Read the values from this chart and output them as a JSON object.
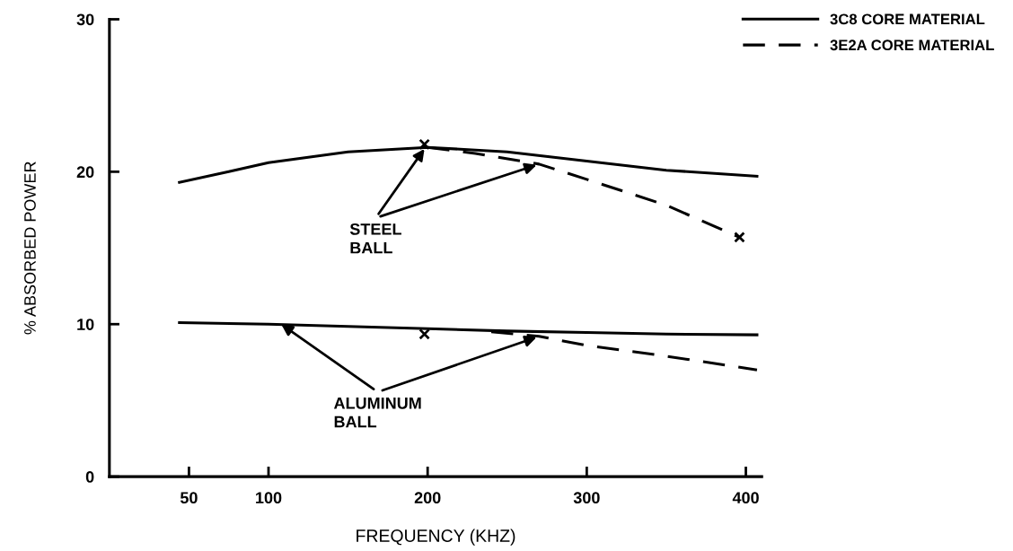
{
  "chart_data": {
    "type": "line",
    "xlabel": "FREQUENCY (KHZ)",
    "ylabel": "% ABSORBED POWER",
    "xlim": [
      0,
      410
    ],
    "xticks": [
      50,
      100,
      200,
      300,
      400
    ],
    "ylim": [
      0,
      30
    ],
    "yticks": [
      0,
      10,
      20,
      30
    ],
    "grid": false,
    "legend": "top right",
    "marker": "none",
    "series": [
      {
        "name": "3C8 CORE MATERIAL",
        "color": "#000000",
        "line_style": "solid",
        "x": [
          44,
          75,
          100,
          150,
          200,
          250,
          300,
          350,
          407
        ],
        "values": [
          19.3,
          20.0,
          20.6,
          21.3,
          21.6,
          21.3,
          20.7,
          20.1,
          19.7
        ]
      },
      {
        "color": "#000000",
        "line_style": "solid",
        "x": [
          44,
          100,
          150,
          200,
          250,
          300,
          350,
          407
        ],
        "values": [
          10.1,
          10.0,
          9.85,
          9.7,
          9.55,
          9.45,
          9.35,
          9.3
        ]
      },
      {
        "name": "3E2A CORE MATERIAL",
        "color": "#000000",
        "line_style": "dashed",
        "x": [
          200,
          230,
          270,
          300,
          350,
          396
        ],
        "values": [
          21.6,
          21.2,
          20.5,
          19.5,
          17.8,
          15.7
        ]
      },
      {
        "color": "#000000",
        "line_style": "dashed",
        "x": [
          240,
          270,
          300,
          350,
          407
        ],
        "values": [
          9.5,
          9.2,
          8.6,
          7.9,
          7.0
        ]
      },
      {
        "type": "scatter",
        "marker": "cross",
        "color": "#000000",
        "x": [
          198,
          396,
          198
        ],
        "values": [
          21.8,
          15.7,
          9.35
        ]
      }
    ],
    "annotations": [
      {
        "text": "STEEL\nBALL",
        "x": 198,
        "y": 21.5
      },
      {
        "text": "ALUMINUM\nBALL",
        "x": 108,
        "y": 10.0
      }
    ]
  }
}
